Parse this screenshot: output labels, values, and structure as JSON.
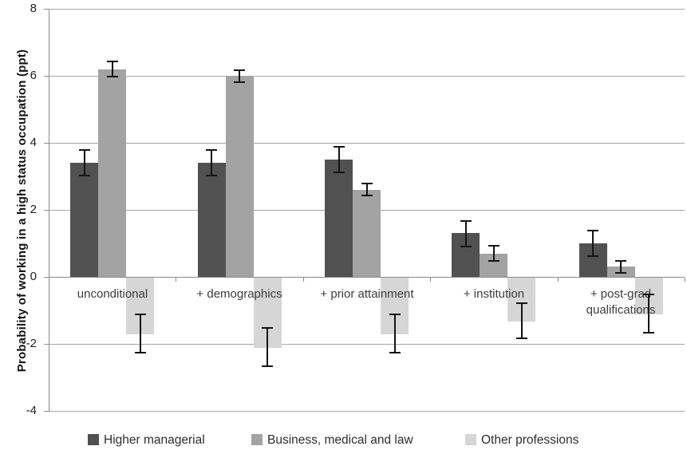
{
  "chart_data": {
    "type": "bar",
    "title": "",
    "ylabel": "Probability of working in a high status occupation (ppt)",
    "xlabel": "",
    "y_axis": {
      "min": -4,
      "max": 8,
      "step": 2,
      "ticks": [
        8,
        6,
        4,
        2,
        0,
        -2,
        -4
      ]
    },
    "grid": true,
    "legend_position": "bottom",
    "categories": [
      "unconditional",
      "+ demographics",
      "+ prior attainment",
      "+ institution",
      "+ post-grad qualifications"
    ],
    "series": [
      {
        "name": "Higher managerial",
        "color": "#515151",
        "values": [
          3.4,
          3.4,
          3.5,
          1.3,
          1.0
        ],
        "errors": [
          0.4,
          0.4,
          0.4,
          0.4,
          0.4
        ]
      },
      {
        "name": "Business, medical and law",
        "color": "#a3a3a3",
        "values": [
          6.2,
          6.0,
          2.6,
          0.7,
          0.3
        ],
        "errors": [
          0.25,
          0.2,
          0.2,
          0.25,
          0.2
        ]
      },
      {
        "name": "Other professions",
        "color": "#d6d6d6",
        "values": [
          -1.7,
          -2.1,
          -1.7,
          -1.3,
          -1.1
        ],
        "errors": [
          0.6,
          0.6,
          0.6,
          0.55,
          0.6
        ]
      }
    ],
    "error_bar_color": "#141414",
    "gridline_color": "#a6a6a6",
    "axis_color": "#8a8a8a"
  }
}
